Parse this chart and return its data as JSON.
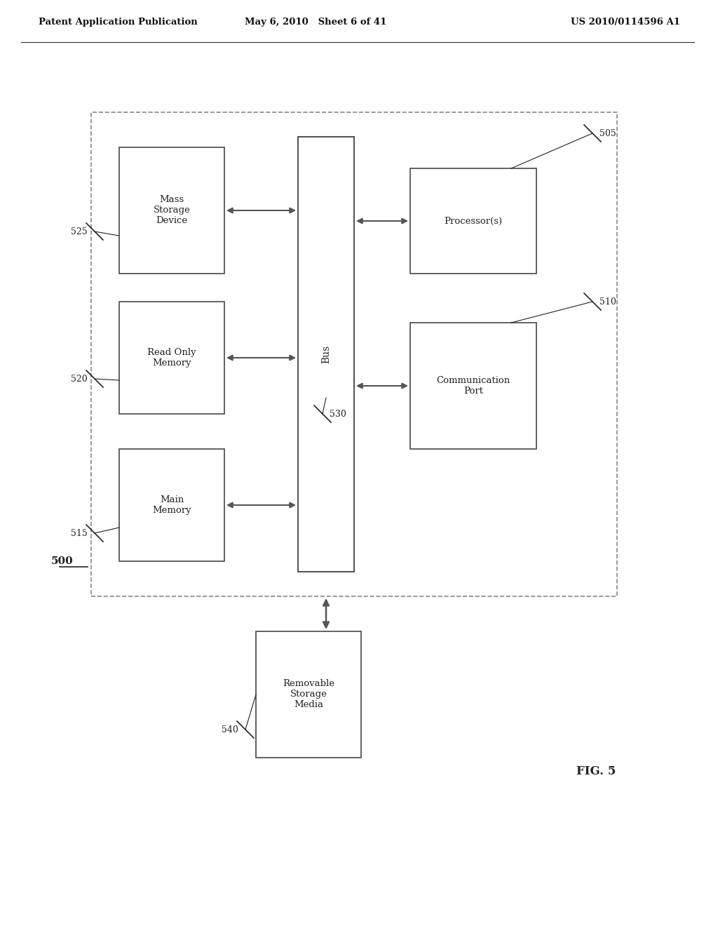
{
  "header_left": "Patent Application Publication",
  "header_mid": "May 6, 2010   Sheet 6 of 41",
  "header_right": "US 2010/0114596 A1",
  "fig_label": "FIG. 5",
  "system_label": "500",
  "bg_color": "#ffffff",
  "line_color": "#555555",
  "box_color": "#ffffff",
  "dashed_color": "#888888",
  "text_color": "#222222",
  "components": [
    {
      "id": "main_memory",
      "label": "Main\nMemory",
      "ref": "515"
    },
    {
      "id": "read_only_memory",
      "label": "Read Only\nMemory",
      "ref": "520"
    },
    {
      "id": "mass_storage",
      "label": "Mass\nStorage\nDevice",
      "ref": "525"
    }
  ],
  "right_components": [
    {
      "id": "processor",
      "label": "Processor(s)",
      "ref": "505"
    },
    {
      "id": "comm_port",
      "label": "Communication\nPort",
      "ref": "510"
    }
  ],
  "bus_label": "Bus",
  "bus_ref": "530",
  "removable_label": "Removable\nStorage\nMedia",
  "removable_ref": "540"
}
